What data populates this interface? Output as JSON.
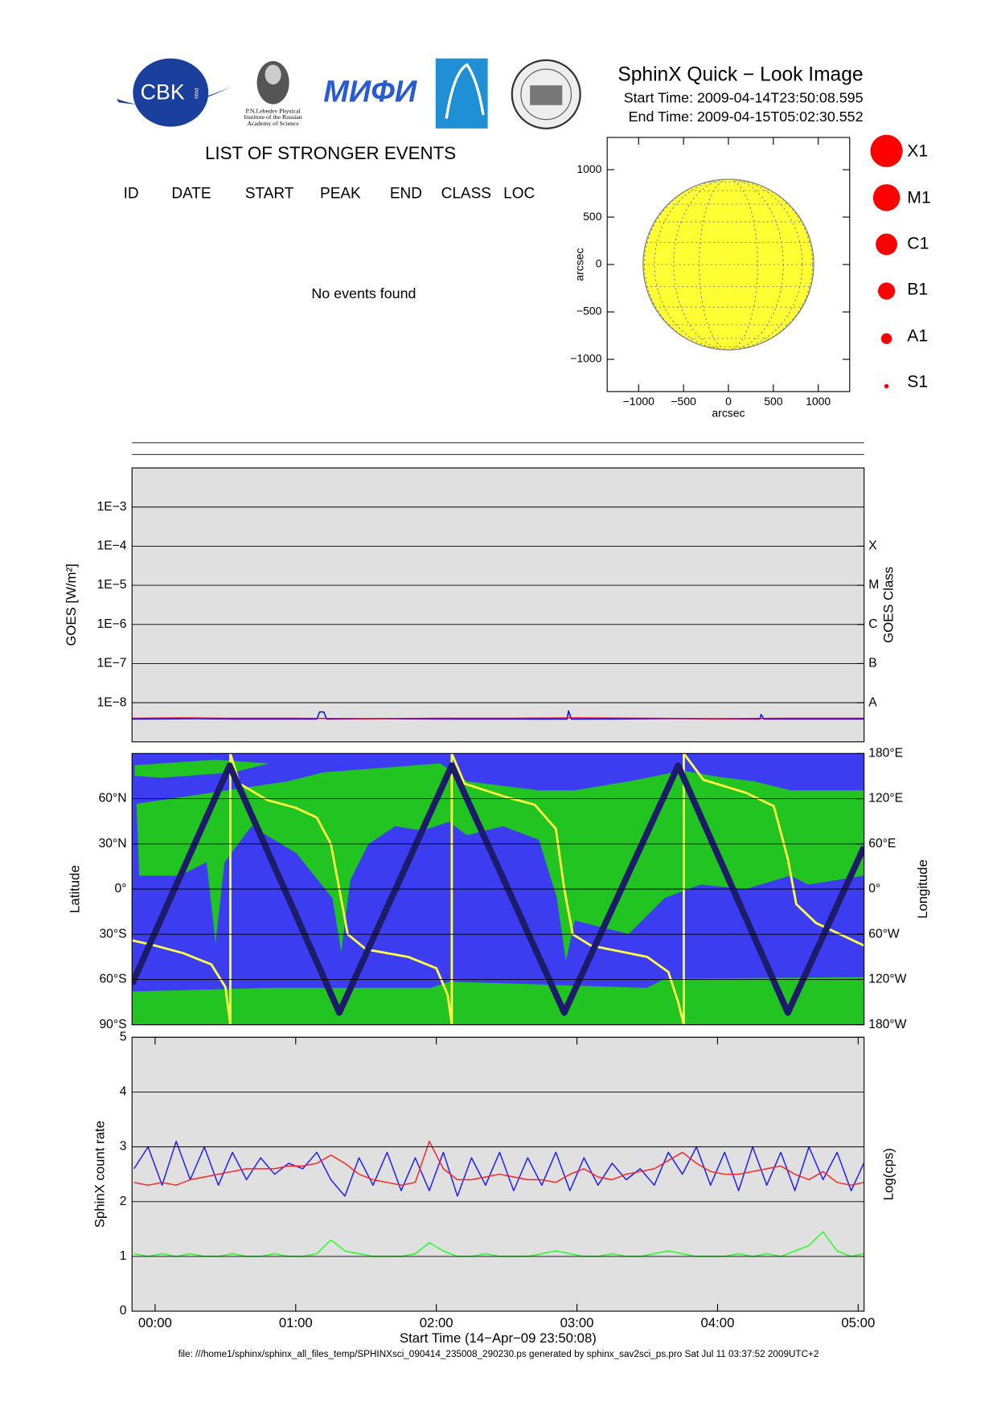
{
  "header": {
    "title": "SphinX Quick − Look Image",
    "start": "Start Time: 2009-04-14T23:50:08.595",
    "end": "End Time: 2009-04-15T05:02:30.552"
  },
  "logos": {
    "cbk": "CBK",
    "pan": "PAN",
    "lebedev": [
      "P.N.Lebedev Physical",
      "Institute of the Russian",
      "Academy of Science"
    ],
    "mifi": "МИФИ"
  },
  "events": {
    "title": "LIST OF STRONGER EVENTS",
    "columns": [
      "ID",
      "DATE",
      "START",
      "PEAK",
      "END",
      "CLASS",
      "LOC"
    ],
    "empty": "No events found"
  },
  "flare_classes": [
    "X1",
    "M1",
    "C1",
    "B1",
    "A1",
    "S1"
  ],
  "footer": "file: ///home1/sphinx/sphinx_all_files_temp/SPHINXsci_090414_235008_290230.ps generated by sphinx_sav2sci_ps.pro Sat Jul 11 03:37:52 2009UTC+2",
  "chart_data": [
    {
      "type": "disk",
      "xlabel": "arcsec",
      "ylabel": "arcsec",
      "xlim": [
        -1350,
        1350
      ],
      "ylim": [
        -1340,
        1340
      ],
      "disk_radius": 950,
      "color": "#ffff33",
      "xticks": [
        {
          "value": -1000,
          "label": "−1000"
        },
        {
          "value": -500,
          "label": "−500"
        },
        0,
        500,
        1000
      ],
      "yticks": [
        {
          "value": -1000,
          "label": "−1000"
        },
        {
          "value": -500,
          "label": "−500"
        },
        0,
        500,
        1000
      ],
      "grid": false
    },
    {
      "type": "line",
      "ylabel": "GOES [W/m²]",
      "y2label": "GOES Class",
      "yscale": "log",
      "xlim": [
        -0.164,
        5.042
      ],
      "ylim": [
        1e-09,
        0.01
      ],
      "y2lim": [
        1e-09,
        0.01
      ],
      "grid": true,
      "yticks": [
        {
          "value": 0.001,
          "label": "1E−3"
        },
        {
          "value": 0.0001,
          "label": "1E−4"
        },
        {
          "value": 1e-05,
          "label": "1E−5"
        },
        {
          "value": 1e-06,
          "label": "1E−6"
        },
        {
          "value": 1e-07,
          "label": "1E−7"
        },
        {
          "value": 1e-08,
          "label": "1E−8"
        }
      ],
      "y2ticks": [
        {
          "value": 0.0001,
          "label": "X"
        },
        {
          "value": 1e-05,
          "label": "M"
        },
        {
          "value": 1e-06,
          "label": "C"
        },
        {
          "value": 1e-07,
          "label": "B"
        },
        {
          "value": 1e-08,
          "label": "A"
        }
      ],
      "series": [
        {
          "color": "#0000ff",
          "x": [
            -0.164,
            0.3,
            0.6,
            1.15,
            1.17,
            1.2,
            1.22,
            1.6,
            2.2,
            2.93,
            2.94,
            2.96,
            3.7,
            4.3,
            4.31,
            4.33,
            5.042
          ],
          "values": [
            3.8e-09,
            3.9e-09,
            3.8e-09,
            3.8e-09,
            5.8e-09,
            5.8e-09,
            3.8e-09,
            3.9e-09,
            3.8e-09,
            3.8e-09,
            6.2e-09,
            3.8e-09,
            3.9e-09,
            3.8e-09,
            5e-09,
            3.8e-09,
            3.8e-09
          ]
        },
        {
          "color": "#ff0000",
          "x": [
            -0.164,
            0.2,
            0.5,
            1.0,
            1.5,
            2.0,
            2.5,
            3.0,
            3.5,
            4.0,
            4.5,
            5.042
          ],
          "values": [
            4e-09,
            4.1e-09,
            4e-09,
            4e-09,
            3.9e-09,
            4e-09,
            4e-09,
            4.1e-09,
            4e-09,
            3.9e-09,
            4e-09,
            4e-09
          ]
        }
      ]
    },
    {
      "type": "line",
      "ylabel": "Latitude",
      "y2label": "Longitude",
      "xlim": [
        -0.164,
        5.042
      ],
      "ylim": [
        -90,
        90
      ],
      "y2lim": [
        -180,
        180
      ],
      "grid": true,
      "yticks": [
        {
          "value": -90,
          "label": "90°S"
        },
        {
          "value": -60,
          "label": "60°S"
        },
        {
          "value": -30,
          "label": "30°S"
        },
        {
          "value": 0,
          "label": "0°"
        },
        {
          "value": 30,
          "label": "30°N"
        },
        {
          "value": 60,
          "label": "60°N"
        }
      ],
      "y2ticks": [
        {
          "value": -180,
          "label": "180°W"
        },
        {
          "value": -120,
          "label": "120°W"
        },
        {
          "value": -60,
          "label": "60°W"
        },
        {
          "value": 0,
          "label": "0°"
        },
        {
          "value": 60,
          "label": "60°E"
        },
        {
          "value": 120,
          "label": "120°E"
        },
        {
          "value": 180,
          "label": "180°E"
        }
      ],
      "series": [
        {
          "color": "#ffff44",
          "axis": "y2",
          "x": [
            -0.164,
            0,
            0.2,
            0.4,
            0.5,
            0.535,
            0.535,
            0.6,
            0.8,
            1.0,
            1.15,
            1.25,
            1.31,
            1.37,
            1.5,
            1.8,
            2.0,
            2.08,
            2.11,
            2.11,
            2.2,
            2.5,
            2.7,
            2.85,
            2.91,
            2.97,
            3.1,
            3.5,
            3.65,
            3.72,
            3.76,
            3.76,
            3.9,
            4.2,
            4.4,
            4.5,
            4.56,
            4.7,
            5.042
          ],
          "values": [
            -68,
            -75,
            -85,
            -100,
            -130,
            -180,
            180,
            140,
            118,
            108,
            95,
            60,
            0,
            -60,
            -80,
            -90,
            -105,
            -140,
            -180,
            180,
            140,
            122,
            112,
            80,
            0,
            -60,
            -75,
            -90,
            -110,
            -150,
            -180,
            180,
            145,
            128,
            110,
            40,
            -20,
            -45,
            -75
          ]
        },
        {
          "color": "#1c1c6b",
          "x": [
            -0.164,
            0.53,
            1.31,
            2.11,
            2.91,
            3.72,
            4.5,
            5.042
          ],
          "values": [
            -63,
            82,
            -82,
            82,
            -82,
            82,
            -82,
            28
          ]
        }
      ]
    },
    {
      "type": "line",
      "ylabel": "SphinX count rate",
      "y2label": "Log(cps)",
      "xlabel": "Start Time (14−Apr−09 23:50:08)",
      "xlim": [
        -0.164,
        5.042
      ],
      "ylim": [
        0,
        5
      ],
      "grid": true,
      "yticks": [
        0,
        1,
        2,
        3,
        4,
        5
      ],
      "xticks": [
        {
          "value": 0,
          "label": "00:00"
        },
        {
          "value": 1,
          "label": "01:00"
        },
        {
          "value": 2,
          "label": "02:00"
        },
        {
          "value": 3,
          "label": "03:00"
        },
        {
          "value": 4,
          "label": "04:00"
        },
        {
          "value": 5,
          "label": "05:00"
        }
      ],
      "x": [
        -0.15,
        -0.05,
        0.05,
        0.15,
        0.25,
        0.35,
        0.45,
        0.55,
        0.65,
        0.75,
        0.85,
        0.95,
        1.05,
        1.15,
        1.25,
        1.35,
        1.45,
        1.55,
        1.65,
        1.75,
        1.85,
        1.95,
        2.05,
        2.15,
        2.25,
        2.35,
        2.45,
        2.55,
        2.65,
        2.75,
        2.85,
        2.95,
        3.05,
        3.15,
        3.25,
        3.35,
        3.45,
        3.55,
        3.65,
        3.75,
        3.85,
        3.95,
        4.05,
        4.15,
        4.25,
        4.35,
        4.45,
        4.55,
        4.65,
        4.75,
        4.85,
        4.95,
        5.04
      ],
      "series": [
        {
          "color": "#1a1aff",
          "values": [
            2.6,
            3.0,
            2.3,
            3.1,
            2.4,
            3.0,
            2.3,
            2.9,
            2.4,
            2.8,
            2.5,
            2.7,
            2.6,
            2.9,
            2.4,
            2.1,
            2.8,
            2.3,
            2.9,
            2.2,
            2.8,
            2.2,
            2.9,
            2.1,
            2.8,
            2.3,
            2.9,
            2.2,
            2.8,
            2.3,
            2.9,
            2.2,
            2.8,
            2.3,
            2.7,
            2.4,
            2.6,
            2.3,
            2.9,
            2.5,
            3.0,
            2.3,
            2.9,
            2.2,
            3.0,
            2.3,
            2.9,
            2.2,
            3.0,
            2.4,
            2.9,
            2.2,
            2.7
          ]
        },
        {
          "color": "#ff2020",
          "values": [
            2.35,
            2.3,
            2.35,
            2.3,
            2.4,
            2.45,
            2.5,
            2.55,
            2.6,
            2.6,
            2.6,
            2.65,
            2.65,
            2.7,
            2.85,
            2.7,
            2.5,
            2.4,
            2.35,
            2.3,
            2.35,
            3.1,
            2.6,
            2.4,
            2.4,
            2.45,
            2.5,
            2.45,
            2.4,
            2.4,
            2.35,
            2.5,
            2.6,
            2.45,
            2.4,
            2.5,
            2.55,
            2.6,
            2.75,
            2.9,
            2.7,
            2.55,
            2.5,
            2.5,
            2.55,
            2.6,
            2.65,
            2.5,
            2.4,
            2.55,
            2.35,
            2.3,
            2.35
          ]
        },
        {
          "color": "#22ff22",
          "values": [
            1.05,
            1.0,
            1.05,
            1.0,
            1.05,
            1.0,
            1.0,
            1.05,
            1.0,
            1.0,
            1.05,
            1.0,
            1.0,
            1.05,
            1.3,
            1.1,
            1.05,
            1.0,
            1.0,
            1.0,
            1.05,
            1.25,
            1.1,
            1.0,
            1.0,
            1.05,
            1.0,
            1.0,
            1.0,
            1.05,
            1.1,
            1.05,
            1.0,
            1.0,
            1.05,
            1.0,
            1.0,
            1.05,
            1.1,
            1.05,
            1.0,
            1.0,
            1.0,
            1.05,
            1.0,
            1.05,
            1.0,
            1.1,
            1.2,
            1.45,
            1.1,
            1.0,
            1.05
          ]
        }
      ]
    }
  ]
}
